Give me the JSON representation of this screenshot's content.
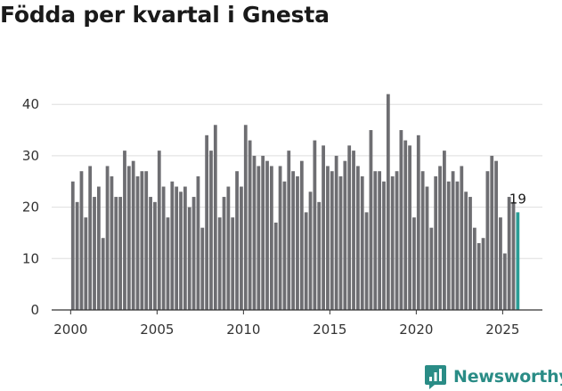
{
  "chart_data": {
    "type": "bar",
    "title": "Födda per kvartal i Gnesta",
    "xlabel": "",
    "ylabel": "",
    "x_start": 2000.0,
    "x_step": 0.25,
    "xlim": [
      1998.9,
      2027.3
    ],
    "ylim": [
      0,
      45
    ],
    "yticks": [
      0,
      10,
      20,
      30,
      40
    ],
    "xticks": [
      2000,
      2005,
      2010,
      2015,
      2020,
      2025
    ],
    "grid": true,
    "series": [
      {
        "name": "Födda",
        "color": "#6e6e72",
        "highlight_color": "#2a9d96",
        "values": [
          25,
          21,
          27,
          18,
          28,
          22,
          24,
          14,
          28,
          26,
          22,
          22,
          31,
          28,
          29,
          26,
          27,
          27,
          22,
          21,
          31,
          24,
          18,
          25,
          24,
          23,
          24,
          20,
          22,
          26,
          16,
          34,
          31,
          36,
          18,
          22,
          24,
          18,
          27,
          24,
          36,
          33,
          30,
          28,
          30,
          29,
          28,
          17,
          28,
          25,
          31,
          27,
          26,
          29,
          19,
          23,
          33,
          21,
          32,
          28,
          27,
          30,
          26,
          29,
          32,
          31,
          28,
          26,
          19,
          35,
          27,
          27,
          25,
          42,
          26,
          27,
          35,
          33,
          32,
          18,
          34,
          27,
          24,
          16,
          26,
          28,
          31,
          25,
          27,
          25,
          28,
          23,
          22,
          16,
          13,
          14,
          27,
          30,
          29,
          18,
          11,
          22,
          21,
          19
        ]
      }
    ],
    "annotations": [
      {
        "index": 103,
        "text": "19"
      }
    ]
  },
  "branding": {
    "name": "Newsworthy",
    "icon": "bar-chart-speech-bubble-icon",
    "color": "#2a8c86"
  }
}
